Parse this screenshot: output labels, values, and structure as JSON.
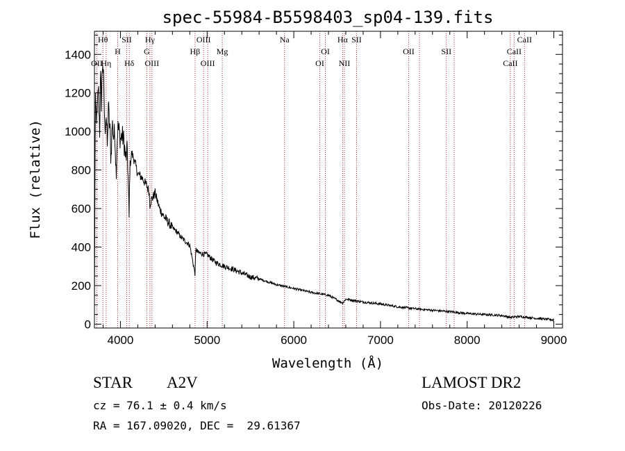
{
  "chart_data": {
    "type": "line",
    "title": "spec-55984-B5598403_sp04-139.fits",
    "xlabel": "Wavelength (Å)",
    "ylabel": "Flux (relative)",
    "xlim": [
      3700,
      9100
    ],
    "ylim": [
      -20,
      1520
    ],
    "xticks": [
      4000,
      5000,
      6000,
      7000,
      8000,
      9000
    ],
    "yticks": [
      0,
      200,
      400,
      600,
      800,
      1000,
      1200,
      1400
    ],
    "grid": false,
    "series": [
      {
        "x": [
          3700,
          3710,
          3720,
          3730,
          3745,
          3760,
          3770,
          3780,
          3795,
          3810,
          3820,
          3835,
          3850,
          3860,
          3870,
          3880,
          3890,
          3905,
          3920,
          3935,
          3950,
          3960,
          3970,
          3985,
          4000,
          4020,
          4040,
          4060,
          4080,
          4100,
          4101,
          4110,
          4130,
          4160,
          4200,
          4250,
          4300,
          4330,
          4340,
          4350,
          4400,
          4450,
          4500,
          4550,
          4600,
          4650,
          4700,
          4750,
          4800,
          4861,
          4870,
          4900,
          5000,
          5100,
          5200,
          5300,
          5400,
          5500,
          5600,
          5700,
          5800,
          5900,
          6000,
          6200,
          6400,
          6563,
          6600,
          6800,
          7000,
          7200,
          7400,
          7600,
          7800,
          8000,
          8200,
          8400,
          8500,
          8600,
          8800,
          9000
        ],
        "values": [
          80,
          1150,
          1100,
          1050,
          1250,
          1000,
          1300,
          1150,
          1380,
          1200,
          1000,
          1100,
          900,
          1150,
          1050,
          1000,
          850,
          1050,
          970,
          1000,
          780,
          940,
          1020,
          1000,
          960,
          980,
          950,
          860,
          900,
          550,
          640,
          820,
          890,
          850,
          780,
          760,
          720,
          690,
          620,
          640,
          680,
          600,
          560,
          530,
          500,
          480,
          450,
          430,
          410,
          260,
          390,
          370,
          360,
          320,
          300,
          285,
          265,
          245,
          235,
          220,
          205,
          195,
          185,
          165,
          150,
          110,
          130,
          115,
          105,
          90,
          80,
          72,
          65,
          55,
          50,
          45,
          35,
          40,
          30,
          22
        ]
      }
    ],
    "line_markers": [
      {
        "label": "Hθ",
        "wl": 3798,
        "row": 0
      },
      {
        "label": "OII",
        "wl": 3727,
        "row": 2
      },
      {
        "label": "Hη",
        "wl": 3835,
        "row": 2
      },
      {
        "label": "H",
        "wl": 3968,
        "row": 1
      },
      {
        "label": "SII",
        "wl": 4072,
        "row": 0
      },
      {
        "label": "Hδ",
        "wl": 4102,
        "row": 2
      },
      {
        "label": "Hγ",
        "wl": 4340,
        "row": 0
      },
      {
        "label": "G",
        "wl": 4305,
        "row": 1
      },
      {
        "label": "OIII",
        "wl": 4363,
        "row": 2
      },
      {
        "label": "OIII",
        "wl": 4959,
        "row": 0
      },
      {
        "label": "Hβ",
        "wl": 4861,
        "row": 1
      },
      {
        "label": "OIII",
        "wl": 5007,
        "row": 2
      },
      {
        "label": "Mg",
        "wl": 5175,
        "row": 1
      },
      {
        "label": "Na",
        "wl": 5893,
        "row": 0
      },
      {
        "label": "OI",
        "wl": 6364,
        "row": 1
      },
      {
        "label": "OI",
        "wl": 6300,
        "row": 2
      },
      {
        "label": "Hα",
        "wl": 6563,
        "row": 0
      },
      {
        "label": "SII",
        "wl": 6724,
        "row": 0
      },
      {
        "label": "NII",
        "wl": 6584,
        "row": 2
      },
      {
        "label": "OII",
        "wl": 7325,
        "row": 1
      },
      {
        "label": "SII",
        "wl": 7760,
        "row": 1
      },
      {
        "label": "CaII",
        "wl": 8662,
        "row": 0
      },
      {
        "label": "CaII",
        "wl": 8542,
        "row": 1
      },
      {
        "label": "CaII",
        "wl": 8498,
        "row": 2
      }
    ],
    "extra_marker_lines": [
      7450,
      7850
    ]
  },
  "info": {
    "class_label": "STAR",
    "subclass": "A2V",
    "survey": "LAMOST DR2",
    "cz": "cz = 76.1 ± 0.4 km/s",
    "obs_date": "Obs-Date: 20120226",
    "coords": "RA = 167.09020, DEC =  29.61367"
  }
}
